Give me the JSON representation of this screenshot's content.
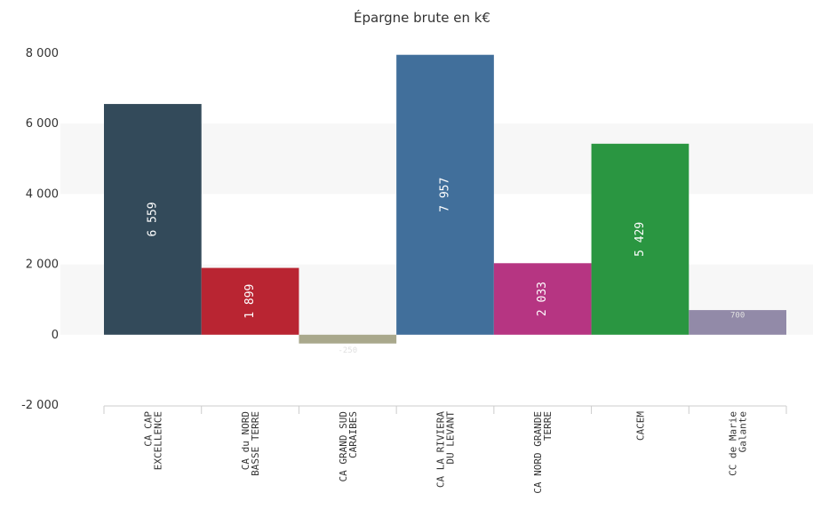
{
  "chart_data": {
    "type": "bar",
    "title": "Épargne brute en k€",
    "categories": [
      [
        "CA CAP",
        "EXCELLENCE"
      ],
      [
        "CA du NORD",
        "BASSE TERRE"
      ],
      [
        "CA GRAND SUD",
        "CARAIBES"
      ],
      [
        "CA LA RIVIERA",
        "DU LEVANT"
      ],
      [
        "CA NORD GRANDE",
        "TERRE"
      ],
      [
        "CACEM"
      ],
      [
        "CC de Marie",
        "Galante"
      ]
    ],
    "values": [
      6559,
      1899,
      -250,
      7957,
      2033,
      5429,
      700
    ],
    "data_labels": [
      "6 559",
      "1 899",
      "-250",
      "7 957",
      "2 033",
      "5 429",
      "700"
    ],
    "colors": [
      "#334a5a",
      "#b92532",
      "#a9a88c",
      "#416f9b",
      "#b63582",
      "#2a9641",
      "#928aa8"
    ],
    "label_colors": [
      "#ffffff",
      "#ffffff",
      "#e0e0e0",
      "#ffffff",
      "#ffffff",
      "#ffffff",
      "#e0e0e0"
    ],
    "ylim": [
      -2000,
      8000
    ],
    "yticks": [
      -2000,
      0,
      2000,
      4000,
      6000,
      8000
    ],
    "ytick_labels": [
      "-2 000",
      "0",
      "2 000",
      "4 000",
      "6 000",
      "8 000"
    ],
    "grid_bands": true,
    "legend": "none"
  }
}
